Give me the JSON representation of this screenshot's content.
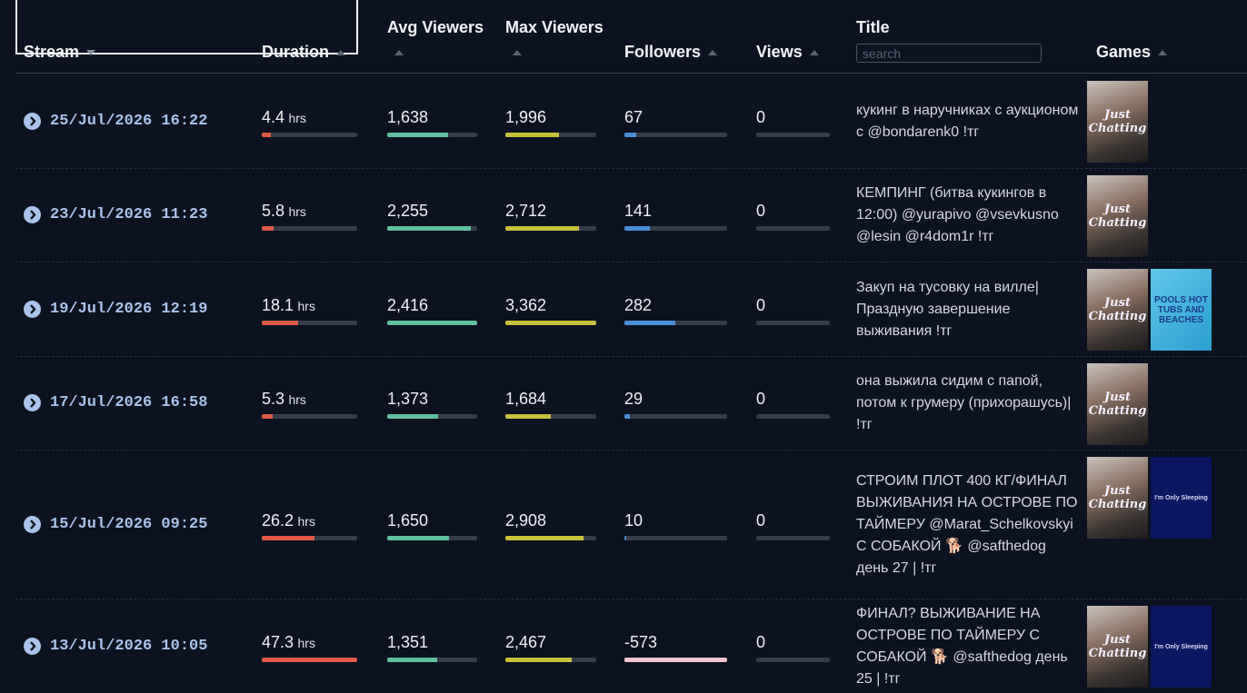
{
  "header": {
    "stream": "Stream",
    "duration": "Duration",
    "avg_viewers": "Avg Viewers",
    "max_viewers": "Max Viewers",
    "followers": "Followers",
    "views": "Views",
    "title": "Title",
    "search_placeholder": "search",
    "games": "Games"
  },
  "duration_unit": "hrs",
  "rows": [
    {
      "date": "25/Jul/2026 16:22",
      "duration": 4.4,
      "avg_viewers": {
        "value": 1638,
        "label": "1,638"
      },
      "max_viewers": {
        "value": 1996,
        "label": "1,996"
      },
      "followers": 67,
      "views": 0,
      "title": "кукинг в наручниках с аукционом с @bondarenk0 !тг",
      "games": [
        "Just Chatting"
      ]
    },
    {
      "date": "23/Jul/2026 11:23",
      "duration": 5.8,
      "avg_viewers": {
        "value": 2255,
        "label": "2,255"
      },
      "max_viewers": {
        "value": 2712,
        "label": "2,712"
      },
      "followers": 141,
      "views": 0,
      "title": "КЕМПИНГ (битва кукингов в 12:00) @yurapivo @vsevkusno @lesin @r4dom1r !тг",
      "games": [
        "Just Chatting"
      ]
    },
    {
      "date": "19/Jul/2026 12:19",
      "duration": 18.1,
      "avg_viewers": {
        "value": 2416,
        "label": "2,416"
      },
      "max_viewers": {
        "value": 3362,
        "label": "3,362"
      },
      "followers": 282,
      "views": 0,
      "title": "Закуп на тусовку на вилле| Праздную завершение выживания !тг",
      "games": [
        "Just Chatting",
        "POOLS HOT TUBS AND BEACHES"
      ]
    },
    {
      "date": "17/Jul/2026 16:58",
      "duration": 5.3,
      "avg_viewers": {
        "value": 1373,
        "label": "1,373"
      },
      "max_viewers": {
        "value": 1684,
        "label": "1,684"
      },
      "followers": 29,
      "views": 0,
      "title": "она выжила сидим с папой, потом к грумеру (прихорашусь)| !тг",
      "games": [
        "Just Chatting"
      ]
    },
    {
      "date": "15/Jul/2026 09:25",
      "duration": 26.2,
      "avg_viewers": {
        "value": 1650,
        "label": "1,650"
      },
      "max_viewers": {
        "value": 2908,
        "label": "2,908"
      },
      "followers": 10,
      "views": 0,
      "title": "СТРОИМ ПЛОТ 400 КГ/ФИНАЛ ВЫЖИВАНИЯ НА ОСТРОВЕ ПО ТАЙМЕРУ @Marat_Schelkovskyi С СОБАКОЙ 🐕 @safthedog день 27 | !тг",
      "games": [
        "Just Chatting",
        "I'm Only Sleeping"
      ]
    },
    {
      "date": "13/Jul/2026 10:05",
      "duration": 47.3,
      "avg_viewers": {
        "value": 1351,
        "label": "1,351"
      },
      "max_viewers": {
        "value": 2467,
        "label": "2,467"
      },
      "followers": -573,
      "views": 0,
      "title": "ФИНАЛ? ВЫЖИВАНИЕ НА ОСТРОВЕ ПО ТАЙМЕРУ С СОБАКОЙ 🐕 @safthedog день 25 | !тг",
      "games": [
        "Just Chatting",
        "I'm Only Sleeping"
      ]
    }
  ]
}
